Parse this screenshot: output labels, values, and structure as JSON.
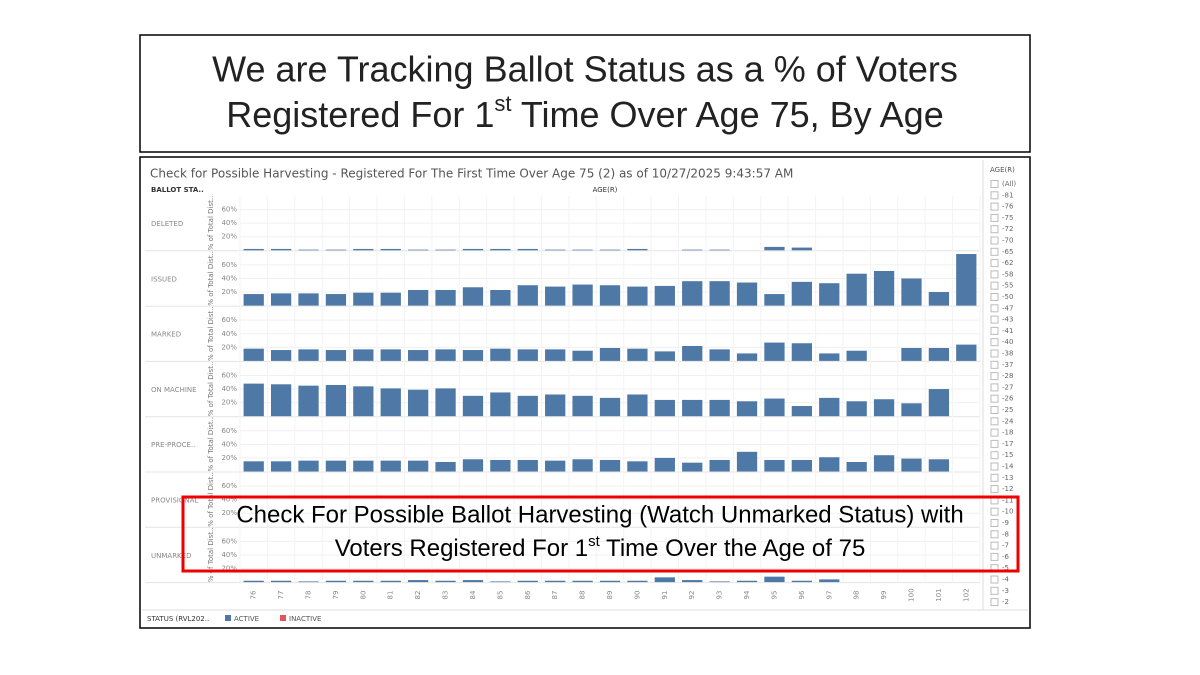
{
  "slide_title": {
    "line1": "We are Tracking Ballot Status as a % of Voters",
    "line2_before": "Registered For 1",
    "line2_sup": "st",
    "line2_after": " Time Over Age 75, By Age"
  },
  "chart_data": {
    "type": "bar",
    "title": "Check for Possible Harvesting - Registered For The First Time Over Age 75 (2) as of 10/27/2025 9:43:57 AM",
    "row_header": "BALLOT STA..",
    "x_label": "AGE(R)",
    "y_label": "% of Total Dist..",
    "categories": [
      "76",
      "77",
      "78",
      "79",
      "80",
      "81",
      "82",
      "83",
      "84",
      "85",
      "86",
      "87",
      "88",
      "89",
      "90",
      "91",
      "92",
      "93",
      "94",
      "95",
      "96",
      "97",
      "98",
      "99",
      "100",
      "101",
      "102"
    ],
    "ylim": [
      0,
      80
    ],
    "yticks": [
      {
        "value": 20,
        "label": "20%"
      },
      {
        "value": 40,
        "label": "40%"
      },
      {
        "value": 60,
        "label": "60%"
      }
    ],
    "grid": true,
    "color": "#4e79a7",
    "panels": [
      {
        "name": "DELETED",
        "values": [
          2,
          2,
          1,
          1,
          2,
          2,
          1,
          1,
          2,
          2,
          2,
          1,
          1,
          1,
          2,
          null,
          1,
          1,
          null,
          5,
          4,
          null,
          null,
          null,
          null,
          null,
          null
        ]
      },
      {
        "name": "ISSUED",
        "values": [
          17,
          18,
          18,
          17,
          19,
          19,
          23,
          23,
          27,
          23,
          30,
          28,
          31,
          30,
          28,
          29,
          36,
          36,
          34,
          17,
          35,
          33,
          47,
          51,
          40,
          20,
          76
        ]
      },
      {
        "name": "MARKED",
        "values": [
          18,
          16,
          17,
          16,
          17,
          17,
          16,
          17,
          16,
          18,
          17,
          17,
          15,
          19,
          18,
          14,
          22,
          17,
          11,
          27,
          26,
          11,
          15,
          null,
          19,
          19,
          24
        ]
      },
      {
        "name": "ON MACHINE",
        "values": [
          48,
          47,
          45,
          46,
          44,
          41,
          39,
          41,
          30,
          35,
          30,
          32,
          30,
          27,
          32,
          24,
          24,
          24,
          22,
          26,
          15,
          27,
          22,
          25,
          19,
          40,
          null
        ]
      },
      {
        "name": "PRE-PROCE..",
        "values": [
          15,
          15,
          16,
          16,
          16,
          16,
          16,
          14,
          18,
          17,
          17,
          16,
          18,
          17,
          15,
          20,
          13,
          17,
          29,
          17,
          17,
          21,
          14,
          24,
          19,
          18,
          null
        ]
      },
      {
        "name": "PROVISIONAL",
        "values": [
          null,
          null,
          null,
          null,
          null,
          null,
          null,
          null,
          null,
          null,
          null,
          null,
          null,
          null,
          null,
          null,
          null,
          null,
          null,
          null,
          null,
          null,
          null,
          null,
          null,
          null,
          null
        ]
      },
      {
        "name": "UNMARKED",
        "values": [
          2,
          2,
          1,
          2,
          2,
          2,
          3,
          2,
          3,
          1,
          2,
          2,
          2,
          2,
          2,
          7,
          3,
          1,
          2,
          8,
          2,
          4,
          null,
          null,
          null,
          null,
          null
        ]
      }
    ],
    "legend_title": "STATUS (RVL202..",
    "series": [
      {
        "name": "ACTIVE",
        "color": "#4e79a7"
      },
      {
        "name": "INACTIVE",
        "color": "#e15759"
      }
    ],
    "annotation": {
      "line1": "Check For Possible Ballot Harvesting (Watch Unmarked Status) with",
      "line2_before": "Voters Registered For 1",
      "line2_sup": "st",
      "line2_after": " Time Over the Age of 75"
    }
  },
  "filter": {
    "title": "AGE(R)",
    "items": [
      "(All)",
      "-81",
      "-76",
      "-75",
      "-72",
      "-70",
      "-65",
      "-62",
      "-58",
      "-55",
      "-50",
      "-47",
      "-43",
      "-41",
      "-40",
      "-38",
      "-37",
      "-28",
      "-27",
      "-26",
      "-25",
      "-24",
      "-18",
      "-17",
      "-15",
      "-14",
      "-13",
      "-12",
      "-11",
      "-10",
      "-9",
      "-8",
      "-7",
      "-6",
      "-5",
      "-4",
      "-3",
      "-2"
    ]
  }
}
